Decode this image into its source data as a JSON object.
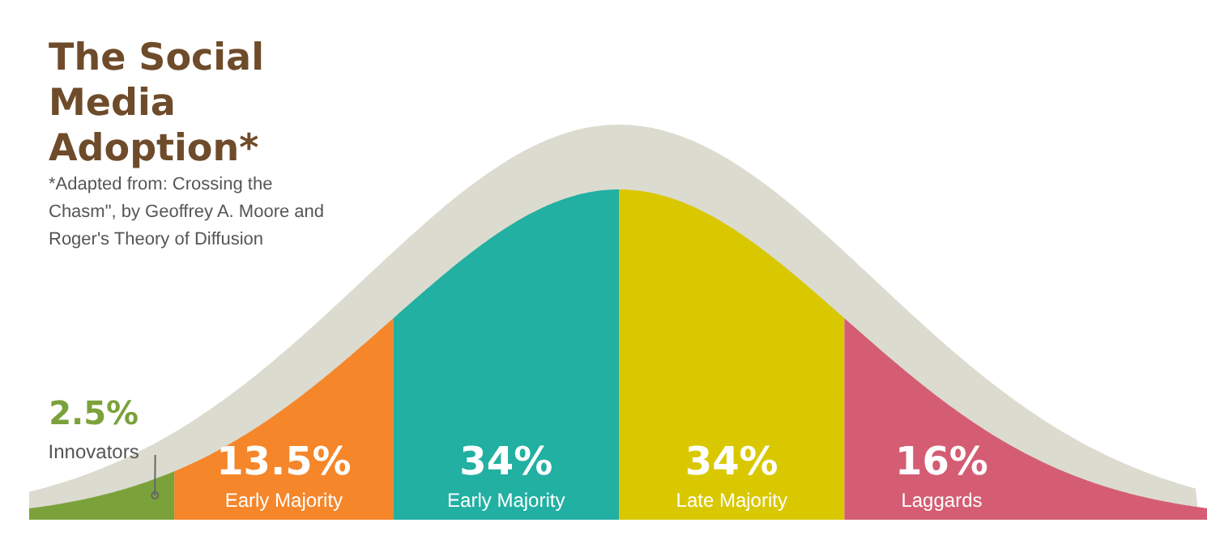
{
  "chart_data": {
    "type": "other",
    "title": "The Social Media Adoption*",
    "annotations": [
      "*Adapted from: Crossing the Chasm\", by Geoffrey A. Moore and Roger's Theory of Diffusion"
    ],
    "categories": [
      "Innovators",
      "Early Majority",
      "Early Majority",
      "Late Majority",
      "Laggards"
    ],
    "values": [
      2.5,
      13.5,
      34,
      34,
      16
    ],
    "colors": [
      "#7ba23a",
      "#f5862a",
      "#22b0a2",
      "#d9c800",
      "#d45d74"
    ],
    "value_labels": [
      "2.5%",
      "13.5%",
      "34%",
      "34%",
      "16%"
    ]
  }
}
